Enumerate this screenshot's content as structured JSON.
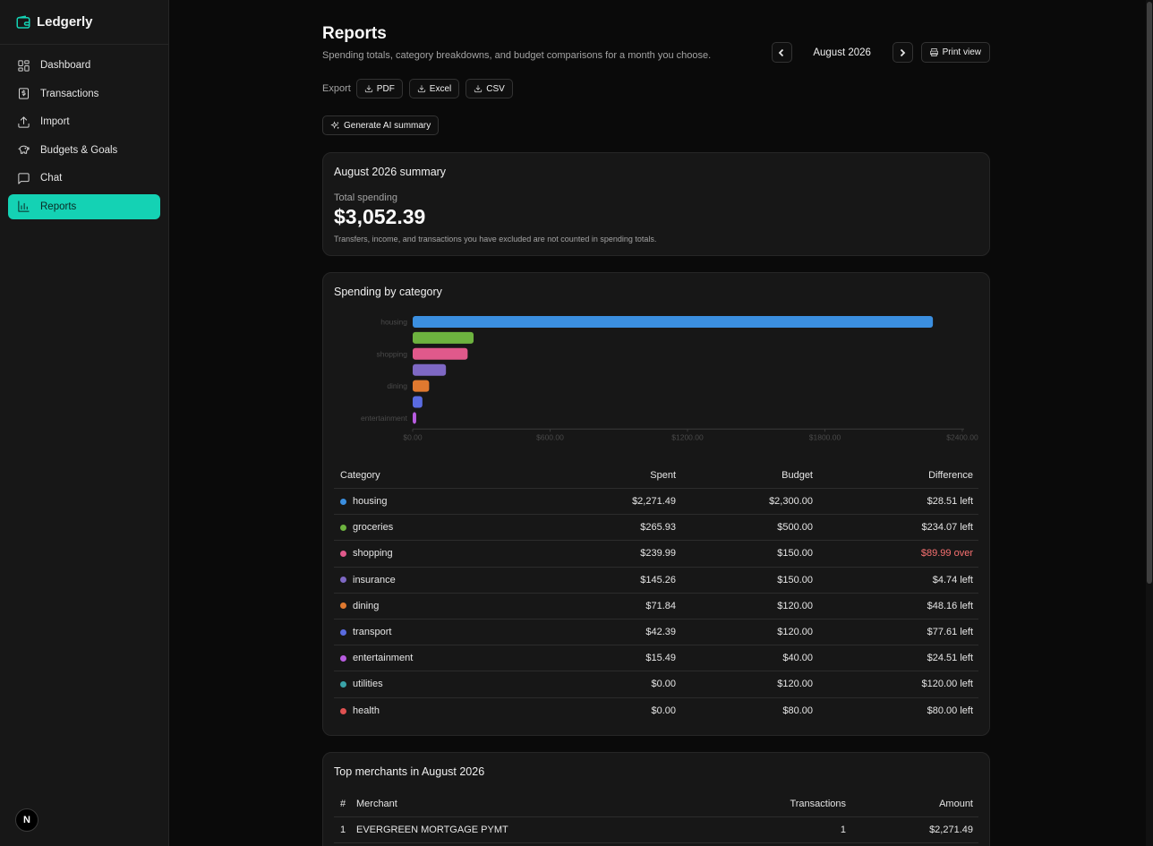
{
  "app": {
    "name": "Ledgerly",
    "badge": "N"
  },
  "sidebar": {
    "items": [
      {
        "label": "Dashboard",
        "active": false
      },
      {
        "label": "Transactions",
        "active": false
      },
      {
        "label": "Import",
        "active": false
      },
      {
        "label": "Budgets & Goals",
        "active": false
      },
      {
        "label": "Chat",
        "active": false
      },
      {
        "label": "Reports",
        "active": true
      }
    ],
    "accent": "#14d2b4"
  },
  "header": {
    "title": "Reports",
    "subtitle": "Spending totals, category breakdowns, and budget comparisons for a month you choose.",
    "month": "August 2026",
    "print_label": "Print view"
  },
  "export": {
    "label": "Export",
    "pdf": "PDF",
    "excel": "Excel",
    "csv": "CSV"
  },
  "ai_button": "Generate AI summary",
  "summary": {
    "title": "August 2026 summary",
    "total_label": "Total spending",
    "total_value": "$3,052.39",
    "note": "Transfers, income, and transactions you have excluded are not counted in spending totals."
  },
  "spending": {
    "title": "Spending by category",
    "columns": {
      "category": "Category",
      "spent": "Spent",
      "budget": "Budget",
      "difference": "Difference"
    },
    "rows": [
      {
        "category": "housing",
        "spent": "$2,271.49",
        "budget": "$2,300.00",
        "difference": "$28.51 left",
        "over": false,
        "color": "#3b8fe0"
      },
      {
        "category": "groceries",
        "spent": "$265.93",
        "budget": "$500.00",
        "difference": "$234.07 left",
        "over": false,
        "color": "#6db33f"
      },
      {
        "category": "shopping",
        "spent": "$239.99",
        "budget": "$150.00",
        "difference": "$89.99 over",
        "over": true,
        "color": "#e0598b"
      },
      {
        "category": "insurance",
        "spent": "$145.26",
        "budget": "$150.00",
        "difference": "$4.74 left",
        "over": false,
        "color": "#7e68c4"
      },
      {
        "category": "dining",
        "spent": "$71.84",
        "budget": "$120.00",
        "difference": "$48.16 left",
        "over": false,
        "color": "#e0792f"
      },
      {
        "category": "transport",
        "spent": "$42.39",
        "budget": "$120.00",
        "difference": "$77.61 left",
        "over": false,
        "color": "#5a6be0"
      },
      {
        "category": "entertainment",
        "spent": "$15.49",
        "budget": "$40.00",
        "difference": "$24.51 left",
        "over": false,
        "color": "#b85ce0"
      },
      {
        "category": "utilities",
        "spent": "$0.00",
        "budget": "$120.00",
        "difference": "$120.00 left",
        "over": false,
        "color": "#3aa3a8"
      },
      {
        "category": "health",
        "spent": "$0.00",
        "budget": "$80.00",
        "difference": "$80.00 left",
        "over": false,
        "color": "#e05151"
      }
    ],
    "over_color": "#f87171"
  },
  "chart_data": {
    "type": "bar",
    "orientation": "horizontal",
    "categories": [
      "housing",
      "groceries",
      "shopping",
      "insurance",
      "dining",
      "transport",
      "entertainment"
    ],
    "shown_category_labels": [
      "housing",
      "shopping",
      "dining",
      "entertainment"
    ],
    "values": [
      2271.49,
      265.93,
      239.99,
      145.26,
      71.84,
      42.39,
      15.49
    ],
    "colors": [
      "#3b8fe0",
      "#6db33f",
      "#e0598b",
      "#7e68c4",
      "#e0792f",
      "#5a6be0",
      "#b85ce0"
    ],
    "xlim": [
      0,
      2400
    ],
    "x_ticks": [
      "$0.00",
      "$600.00",
      "$1200.00",
      "$1800.00",
      "$2400.00"
    ],
    "grid": false,
    "title": "",
    "xlabel": "",
    "ylabel": ""
  },
  "merchants": {
    "title": "Top merchants in August 2026",
    "columns": {
      "num": "#",
      "merchant": "Merchant",
      "transactions": "Transactions",
      "amount": "Amount"
    },
    "rows": [
      {
        "num": "1",
        "merchant": "EVERGREEN MORTGAGE PYMT",
        "transactions": "1",
        "amount": "$2,271.49"
      }
    ]
  }
}
